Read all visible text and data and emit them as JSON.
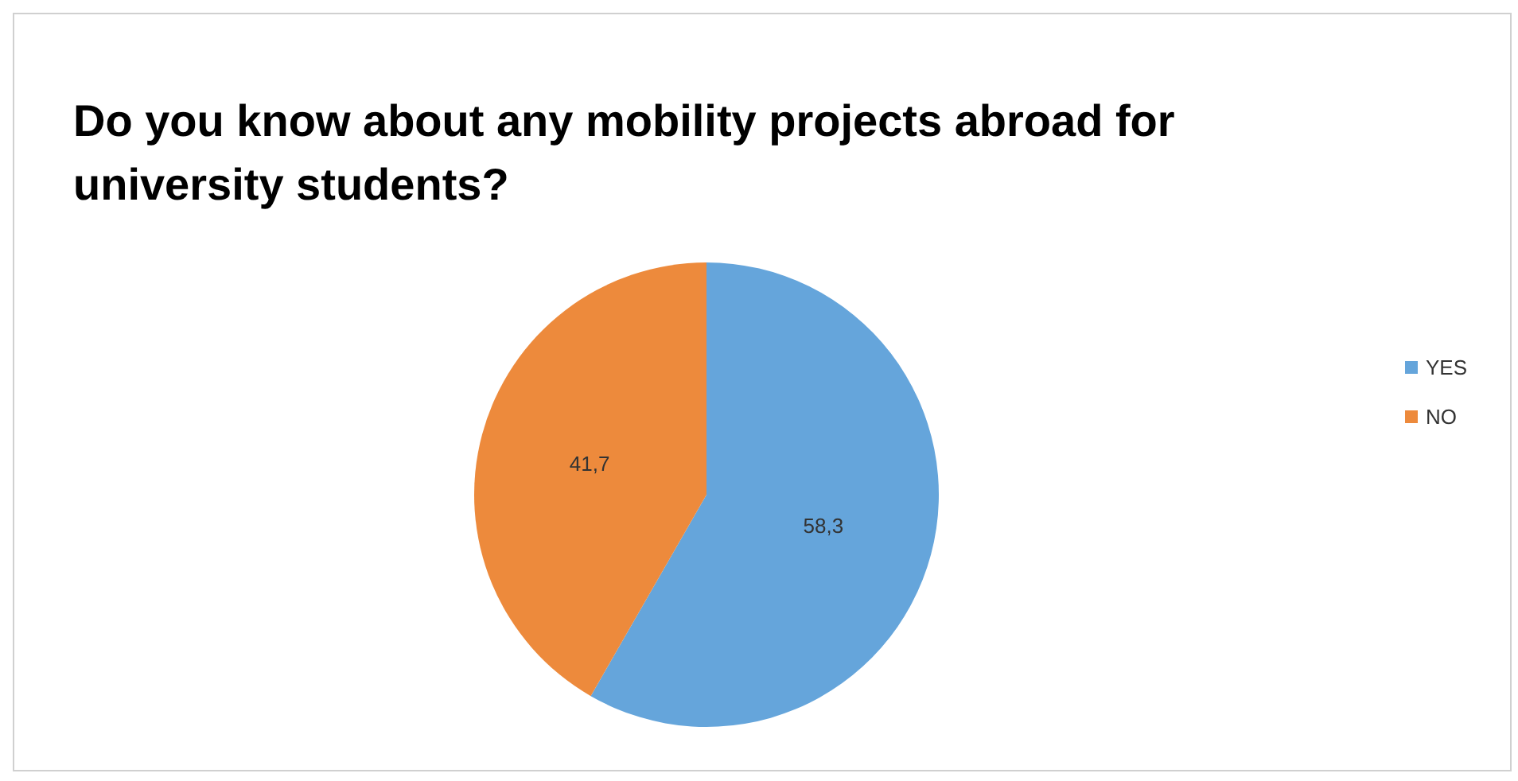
{
  "chart_data": {
    "type": "pie",
    "title": "Do you know about any mobility projects abroad for university students?",
    "categories": [
      "YES",
      "NO"
    ],
    "values": [
      58.3,
      41.7
    ],
    "value_labels": [
      "58,3",
      "41,7"
    ],
    "colors": [
      "#65a5db",
      "#ed8a3c"
    ],
    "legend": "right"
  }
}
